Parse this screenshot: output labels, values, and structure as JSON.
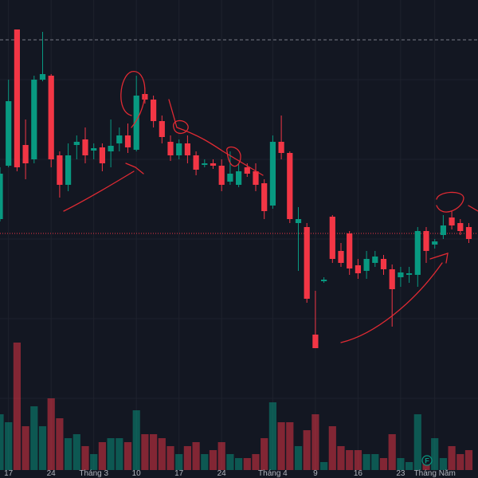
{
  "chart_data": {
    "type": "candlestick",
    "categories": [
      null,
      "17",
      null,
      null,
      null,
      null,
      "24",
      null,
      null,
      null,
      null,
      "Tháng 3",
      null,
      null,
      null,
      null,
      "10",
      null,
      null,
      null,
      null,
      "17",
      null,
      null,
      null,
      null,
      "24",
      null,
      null,
      null,
      null,
      null,
      "Tháng 4",
      null,
      null,
      null,
      null,
      "9",
      null,
      null,
      null,
      null,
      "16",
      null,
      null,
      null,
      null,
      "23",
      null,
      null,
      null,
      "Tháng Năm",
      null,
      null,
      null,
      null
    ],
    "open": [
      325,
      392,
      563,
      418,
      400,
      500,
      505,
      405,
      368,
      418,
      425,
      411,
      415,
      410,
      420,
      430,
      412,
      482,
      475,
      448,
      422,
      405,
      420,
      405,
      393,
      395,
      392,
      372,
      368,
      390,
      385,
      370,
      342,
      422,
      408,
      320,
      315,
      180,
      247,
      328,
      285,
      307,
      267,
      260,
      270,
      275,
      262,
      252,
      255,
      255,
      310,
      293,
      305,
      327,
      320,
      315
    ],
    "high": [
      390,
      500,
      563,
      450,
      505,
      560,
      507,
      410,
      420,
      430,
      440,
      420,
      420,
      450,
      440,
      445,
      505,
      490,
      480,
      455,
      430,
      425,
      430,
      410,
      400,
      400,
      400,
      410,
      395,
      395,
      395,
      375,
      430,
      455,
      410,
      340,
      320,
      235,
      252,
      330,
      295,
      310,
      275,
      285,
      285,
      280,
      268,
      265,
      265,
      315,
      315,
      300,
      330,
      335,
      325,
      320
    ],
    "low": [
      322,
      390,
      385,
      375,
      395,
      498,
      390,
      352,
      360,
      400,
      395,
      400,
      385,
      390,
      410,
      408,
      410,
      470,
      440,
      420,
      398,
      400,
      395,
      380,
      390,
      388,
      360,
      368,
      365,
      378,
      360,
      325,
      338,
      400,
      320,
      260,
      220,
      163,
      245,
      270,
      265,
      255,
      250,
      250,
      265,
      255,
      190,
      240,
      245,
      240,
      270,
      288,
      300,
      312,
      305,
      295
    ],
    "close": [
      382,
      473,
      390,
      395,
      500,
      507,
      400,
      368,
      405,
      422,
      405,
      414,
      395,
      417,
      430,
      415,
      480,
      475,
      448,
      428,
      405,
      420,
      405,
      387,
      395,
      392,
      368,
      382,
      385,
      382,
      368,
      335,
      422,
      408,
      325,
      325,
      225,
      163,
      249,
      275,
      270,
      263,
      257,
      275,
      278,
      262,
      237,
      258,
      257,
      310,
      285,
      297,
      317,
      317,
      310,
      300
    ],
    "volume": [
      70,
      60,
      160,
      55,
      80,
      55,
      90,
      65,
      40,
      45,
      30,
      20,
      35,
      40,
      40,
      35,
      75,
      45,
      45,
      40,
      30,
      20,
      30,
      35,
      20,
      25,
      35,
      20,
      15,
      15,
      20,
      40,
      85,
      60,
      60,
      30,
      50,
      70,
      10,
      55,
      30,
      25,
      25,
      20,
      20,
      15,
      45,
      15,
      10,
      70,
      15,
      40,
      15,
      30,
      20,
      25
    ],
    "ylim": [
      0,
      600
    ],
    "volume_ylim": [
      0,
      590
    ],
    "price_lines": [
      550,
      307
    ],
    "up_color": "#089981",
    "down_color": "#f23645",
    "event_marker": "F"
  }
}
